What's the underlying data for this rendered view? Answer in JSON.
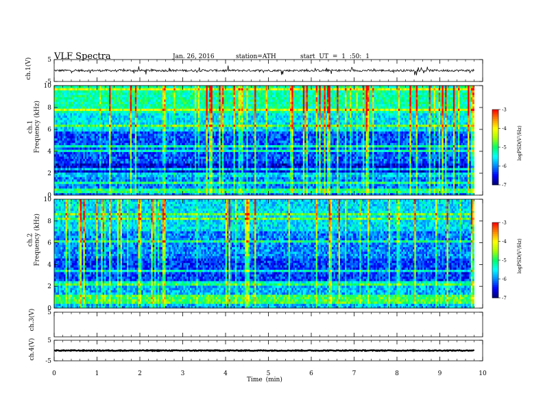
{
  "header": {
    "title": "VLF  Spectra",
    "date": "Jan. 26, 2016",
    "station": "station=ATH",
    "start": "start  UT =   1 :50: 1"
  },
  "chart_data": [
    {
      "type": "line",
      "name": "ch.1 waveform",
      "ylabel": "ch.1(V)",
      "ylim": [
        -5,
        5
      ],
      "yticks": [
        "5",
        "-5"
      ],
      "xlim": [
        0,
        10
      ],
      "baseline": 0.0,
      "noise_amplitude": 0.5
    },
    {
      "type": "heatmap",
      "name": "ch.1 spectrogram",
      "ylabel": [
        "ch.1",
        "Frequency (kHz)"
      ],
      "ylim": [
        0,
        10
      ],
      "yticks": [
        "0",
        "2",
        "4",
        "6",
        "8",
        "10"
      ],
      "xlim": [
        0,
        10
      ],
      "data_end_min": 9.8,
      "colorbar": {
        "label": "logPSD(V²/Hz)",
        "range": [
          -7,
          -3
        ],
        "ticks": [
          "-3",
          "-4",
          "-5",
          "-6",
          "-7"
        ]
      },
      "bands_kHz": [
        {
          "from": 0,
          "to": 1.6,
          "level": -6.0
        },
        {
          "from": 1.6,
          "to": 3.0,
          "level": -6.6
        },
        {
          "from": 3.0,
          "to": 5.8,
          "level": -6.2
        },
        {
          "from": 5.8,
          "to": 7.5,
          "level": -5.6
        },
        {
          "from": 7.5,
          "to": 10,
          "level": -5.2
        }
      ]
    },
    {
      "type": "heatmap",
      "name": "ch.2 spectrogram",
      "ylabel": [
        "ch.2",
        "Frequency (kHz)"
      ],
      "ylim": [
        0,
        10
      ],
      "yticks": [
        "0",
        "2",
        "4",
        "6",
        "8",
        "10"
      ],
      "xlim": [
        0,
        10
      ],
      "data_end_min": 9.8,
      "colorbar": {
        "label": "logPSD(V²/Hz)",
        "range": [
          -7,
          -3
        ],
        "ticks": [
          "-3",
          "-4",
          "-5",
          "-6",
          "-7"
        ]
      },
      "bands_kHz": [
        {
          "from": 0,
          "to": 2.2,
          "level": -5.8
        },
        {
          "from": 2.2,
          "to": 4.5,
          "level": -6.3
        },
        {
          "from": 4.5,
          "to": 7.0,
          "level": -6.0
        },
        {
          "from": 7.0,
          "to": 10,
          "level": -5.6
        }
      ]
    },
    {
      "type": "line",
      "name": "ch.3 waveform",
      "ylabel": "ch.3(V)",
      "ylim": [
        -5,
        5
      ],
      "yticks": [
        "5"
      ],
      "xlim": [
        0,
        10
      ]
    },
    {
      "type": "line",
      "name": "ch.4 waveform",
      "ylabel": "ch.4(V)",
      "ylim": [
        -5,
        5
      ],
      "yticks": [
        "5",
        "-5"
      ],
      "xlim": [
        0,
        10
      ],
      "baseline": 0.0,
      "noise_amplitude": 0.2
    }
  ],
  "xaxis": {
    "label": "Time  (min)",
    "ticks": [
      "0",
      "1",
      "2",
      "3",
      "4",
      "5",
      "6",
      "7",
      "8",
      "9",
      "10"
    ]
  },
  "colors": {
    "scale": [
      "#000070",
      "#0000ff",
      "#0088ff",
      "#00ffff",
      "#00ff66",
      "#aaff00",
      "#ffff00",
      "#ff8800",
      "#ff0000",
      "#ffffff"
    ]
  }
}
